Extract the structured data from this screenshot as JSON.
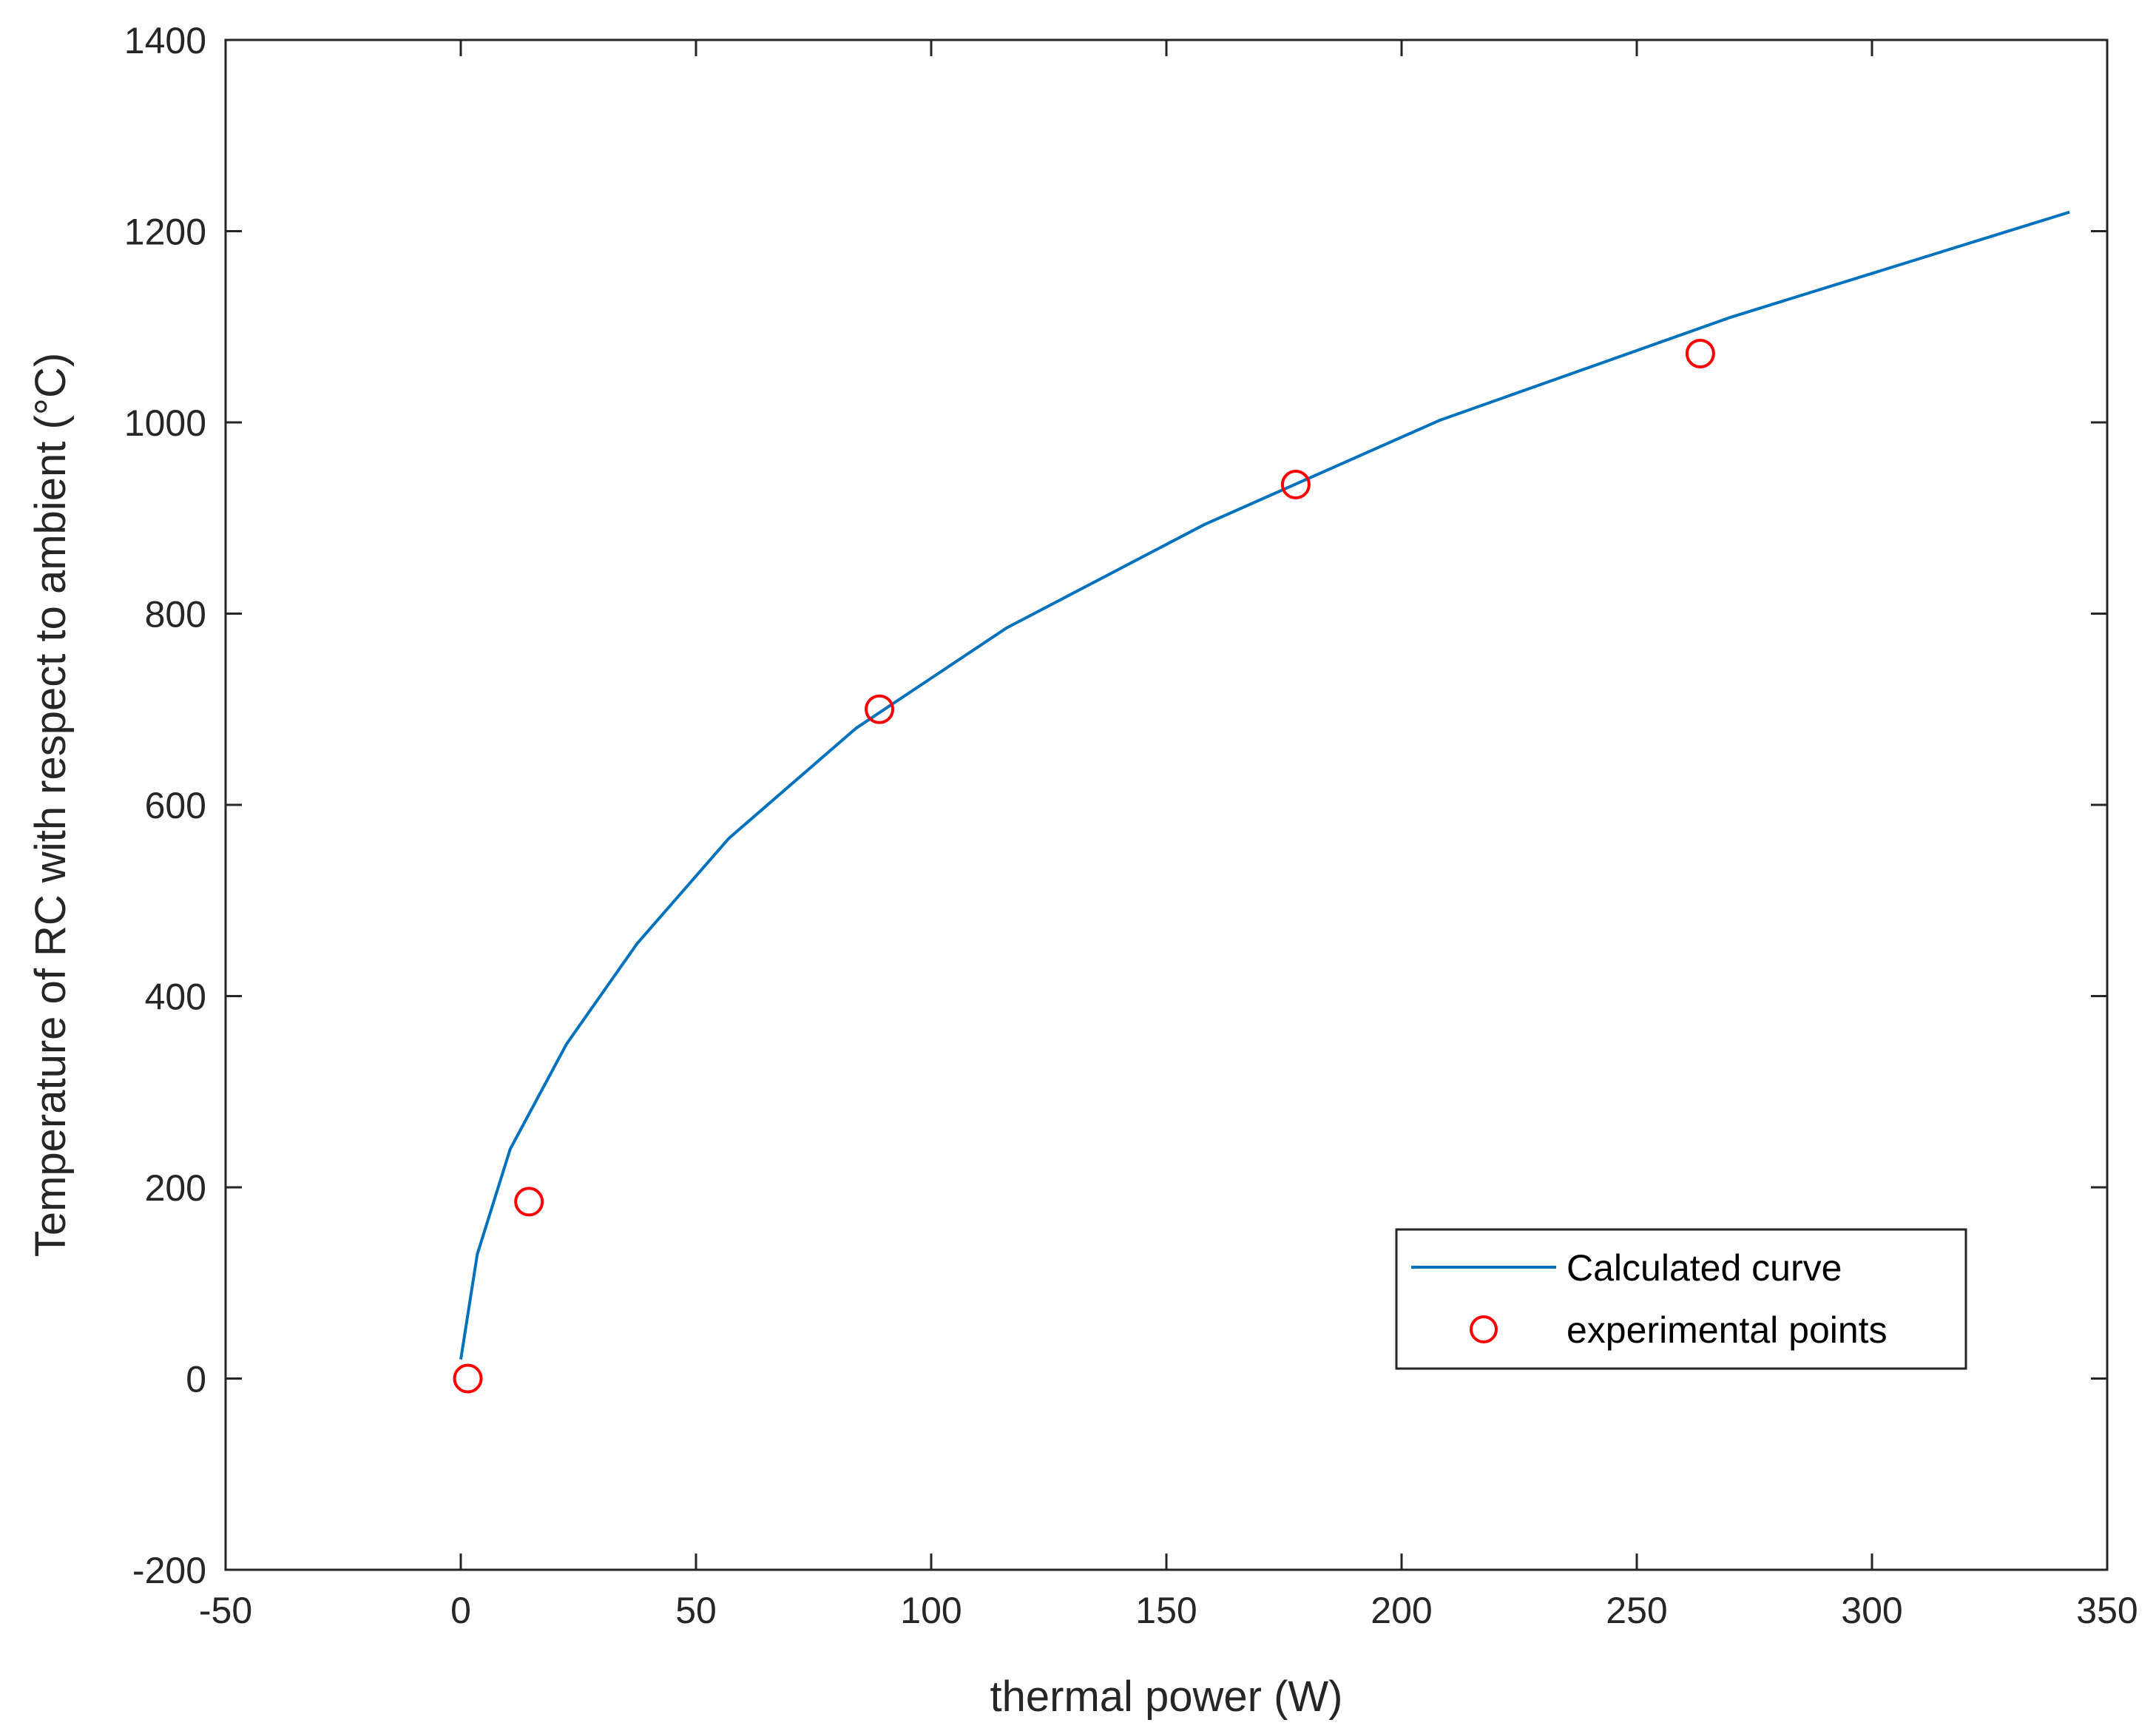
{
  "chart_data": {
    "type": "line",
    "title": "",
    "xlabel": "thermal power (W)",
    "ylabel": "Temperature of RC with respect to ambient (°C)",
    "xlim": [
      -50,
      350
    ],
    "ylim": [
      -200,
      1400
    ],
    "xticks": [
      -50,
      0,
      50,
      100,
      150,
      200,
      250,
      300,
      350
    ],
    "yticks": [
      -200,
      0,
      200,
      400,
      600,
      800,
      1000,
      1200,
      1400
    ],
    "grid": false,
    "legend_position": "bottom-right",
    "series": [
      {
        "name": "Calculated curve",
        "type": "line",
        "color": "#0072BD",
        "x": [
          0,
          3.5,
          10.5,
          22.5,
          37.5,
          57,
          84,
          116,
          158,
          208,
          270,
          342
        ],
        "y": [
          20,
          130,
          240,
          350,
          455,
          565,
          680,
          785,
          893,
          1002,
          1110,
          1220
        ]
      },
      {
        "name": "experimental points",
        "type": "scatter",
        "marker": "circle",
        "color": "#FF0000",
        "x": [
          1.5,
          14.5,
          89,
          177.5,
          263.5
        ],
        "y": [
          0,
          185,
          700,
          935,
          1072
        ]
      }
    ]
  }
}
